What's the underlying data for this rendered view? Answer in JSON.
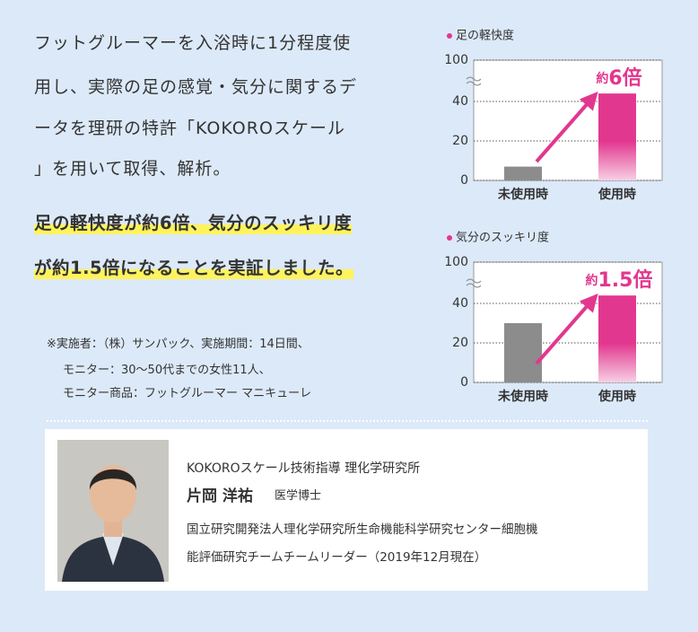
{
  "intro_lines": [
    "フットグルーマーを入浴時に1分程度使",
    "用し、実際の足の感覚・気分に関するデ",
    "ータを理研の特許「KOKOROスケール",
    "」を用いて取得、解析。"
  ],
  "highlight_lines": [
    "足の軽快度が約6倍、気分のスッキリ度",
    "が約1.5倍になることを実証しました。"
  ],
  "notes": [
    "※実施者：（株）サンパック、実施期間：14日間、",
    "モニター：30～50代までの女性11人、",
    "モニター商品：フットグルーマー マニキューレ"
  ],
  "profile": {
    "affiliation": "KOKOROスケール技術指導 理化学研究所",
    "name": "片岡 洋祐",
    "degree": "医学博士",
    "description_lines": [
      "国立研究開発法人理化学研究所生命機能科学研究センター細胞機",
      "能評価研究チームチームリーダー（2019年12月現在）"
    ]
  },
  "chart_data": [
    {
      "type": "bar",
      "title": "足の軽快度",
      "categories": [
        "未使用時",
        "使用時"
      ],
      "values": [
        7,
        44
      ],
      "colors": [
        "#8c8c8c",
        "#e2378f"
      ],
      "ylim": [
        0,
        100
      ],
      "yticks": [
        0,
        20,
        40,
        100
      ],
      "grid": true,
      "annotation": [
        "約",
        "6倍"
      ]
    },
    {
      "type": "bar",
      "title": "気分のスッキリ度",
      "categories": [
        "未使用時",
        "使用時"
      ],
      "values": [
        30,
        44
      ],
      "colors": [
        "#8c8c8c",
        "#e2378f"
      ],
      "ylim": [
        0,
        100
      ],
      "yticks": [
        0,
        20,
        40,
        100
      ],
      "grid": true,
      "annotation": [
        "約",
        "1.5倍"
      ]
    }
  ]
}
